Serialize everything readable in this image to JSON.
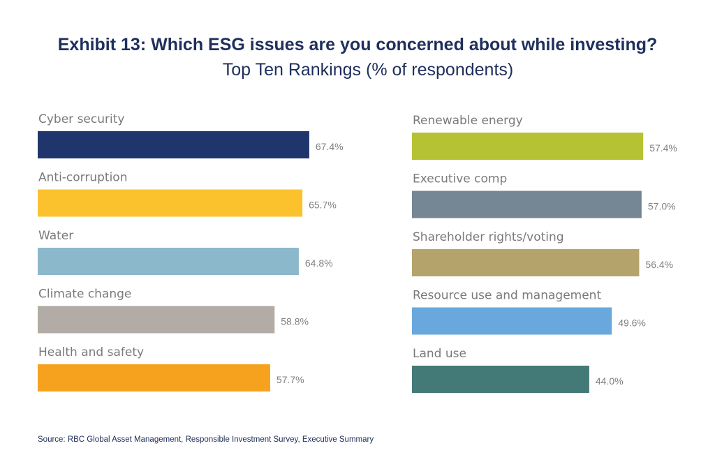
{
  "chart_data": {
    "type": "bar",
    "orientation": "horizontal",
    "title": "Exhibit 13: Which ESG issues are you concerned about while investing?",
    "subtitle": "Top Ten Rankings (% of respondents)",
    "source": "Source: RBC Global Asset Management, Responsible Investment Survey, Executive Summary",
    "xlim": [
      0,
      100
    ],
    "grid": false,
    "columns": [
      {
        "bars": [
          {
            "label": "Cyber security",
            "value": 67.4,
            "value_label": "67.4%",
            "color": "#1f356b"
          },
          {
            "label": "Anti-corruption",
            "value": 65.7,
            "value_label": "65.7%",
            "color": "#fcc22e"
          },
          {
            "label": "Water",
            "value": 64.8,
            "value_label": "64.8%",
            "color": "#8bb8cb"
          },
          {
            "label": "Climate change",
            "value": 58.8,
            "value_label": "58.8%",
            "color": "#b3aca6"
          },
          {
            "label": "Health and safety",
            "value": 57.7,
            "value_label": "57.7%",
            "color": "#f6a21e"
          }
        ]
      },
      {
        "bars": [
          {
            "label": "Renewable energy",
            "value": 57.4,
            "value_label": "57.4%",
            "color": "#b5c233"
          },
          {
            "label": "Executive comp",
            "value": 57.0,
            "value_label": "57.0%",
            "color": "#758695"
          },
          {
            "label": "Shareholder rights/voting",
            "value": 56.4,
            "value_label": "56.4%",
            "color": "#b5a36c"
          },
          {
            "label": "Resource use and management",
            "value": 49.6,
            "value_label": "49.6%",
            "color": "#69a8dd"
          },
          {
            "label": "Land use",
            "value": 44.0,
            "value_label": "44.0%",
            "color": "#437a78"
          }
        ]
      }
    ]
  }
}
